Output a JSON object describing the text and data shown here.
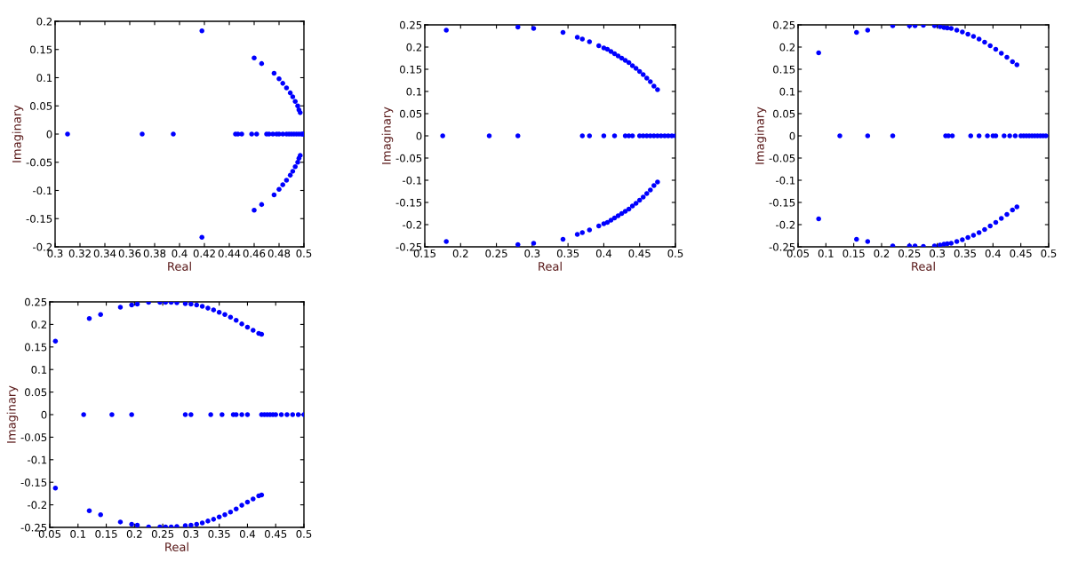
{
  "chart_data": [
    {
      "type": "scatter",
      "xlabel": "Real",
      "ylabel": "Imaginary",
      "marker": "circle",
      "grid": false,
      "xlim": [
        0.3,
        0.5
      ],
      "ylim": [
        -0.2,
        0.2
      ],
      "xticks": [
        0.3,
        0.32,
        0.34,
        0.36,
        0.38,
        0.4,
        0.42,
        0.44,
        0.46,
        0.48,
        0.5
      ],
      "yticks": [
        -0.2,
        -0.15,
        -0.1,
        -0.05,
        0,
        0.05,
        0.1,
        0.15,
        0.2
      ],
      "series": [
        {
          "color": "#0000ff",
          "x": [
            0.418,
            0.46,
            0.466,
            0.476,
            0.48,
            0.483,
            0.486,
            0.489,
            0.491,
            0.493,
            0.495,
            0.496,
            0.497,
            0.31,
            0.37,
            0.395,
            0.445,
            0.447,
            0.45,
            0.458,
            0.462,
            0.47,
            0.472,
            0.475,
            0.478,
            0.48,
            0.483,
            0.486,
            0.488,
            0.49,
            0.492,
            0.494,
            0.496,
            0.498,
            0.499,
            0.5,
            0.418,
            0.46,
            0.466,
            0.476,
            0.48,
            0.483,
            0.486,
            0.489,
            0.491,
            0.493,
            0.495,
            0.496,
            0.497
          ],
          "values": [
            0.183,
            0.135,
            0.125,
            0.108,
            0.098,
            0.09,
            0.082,
            0.073,
            0.066,
            0.058,
            0.05,
            0.043,
            0.038,
            0,
            0,
            0,
            0,
            0,
            0,
            0,
            0,
            0,
            0,
            0,
            0,
            0,
            0,
            0,
            0,
            0,
            0,
            0,
            0,
            0,
            0,
            0,
            -0.183,
            -0.135,
            -0.125,
            -0.108,
            -0.098,
            -0.09,
            -0.082,
            -0.073,
            -0.066,
            -0.058,
            -0.05,
            -0.043,
            -0.038
          ]
        }
      ]
    },
    {
      "type": "scatter",
      "xlabel": "Real",
      "ylabel": "Imaginary",
      "marker": "circle",
      "grid": false,
      "xlim": [
        0.15,
        0.5
      ],
      "ylim": [
        -0.25,
        0.25
      ],
      "xticks": [
        0.15,
        0.2,
        0.25,
        0.3,
        0.35,
        0.4,
        0.45,
        0.5
      ],
      "yticks": [
        -0.25,
        -0.2,
        -0.15,
        -0.1,
        -0.05,
        0,
        0.05,
        0.1,
        0.15,
        0.2,
        0.25
      ],
      "series": [
        {
          "color": "#0000ff",
          "x": [
            0.18,
            0.28,
            0.302,
            0.343,
            0.363,
            0.37,
            0.38,
            0.393,
            0.4,
            0.405,
            0.41,
            0.415,
            0.42,
            0.425,
            0.43,
            0.435,
            0.44,
            0.445,
            0.45,
            0.455,
            0.46,
            0.465,
            0.47,
            0.475,
            0.175,
            0.24,
            0.28,
            0.37,
            0.38,
            0.4,
            0.415,
            0.43,
            0.435,
            0.44,
            0.45,
            0.455,
            0.46,
            0.465,
            0.47,
            0.475,
            0.48,
            0.485,
            0.49,
            0.495,
            0.5,
            0.18,
            0.28,
            0.302,
            0.343,
            0.363,
            0.37,
            0.38,
            0.393,
            0.4,
            0.405,
            0.41,
            0.415,
            0.42,
            0.425,
            0.43,
            0.435,
            0.44,
            0.445,
            0.45,
            0.455,
            0.46,
            0.465,
            0.47,
            0.475
          ],
          "values": [
            0.238,
            0.245,
            0.242,
            0.233,
            0.222,
            0.218,
            0.212,
            0.203,
            0.198,
            0.195,
            0.19,
            0.185,
            0.18,
            0.175,
            0.17,
            0.165,
            0.158,
            0.152,
            0.145,
            0.138,
            0.13,
            0.122,
            0.112,
            0.104,
            0,
            0,
            0,
            0,
            0,
            0,
            0,
            0,
            0,
            0,
            0,
            0,
            0,
            0,
            0,
            0,
            0,
            0,
            0,
            0,
            0,
            -0.238,
            -0.245,
            -0.242,
            -0.233,
            -0.222,
            -0.218,
            -0.212,
            -0.203,
            -0.198,
            -0.195,
            -0.19,
            -0.185,
            -0.18,
            -0.175,
            -0.17,
            -0.165,
            -0.158,
            -0.152,
            -0.145,
            -0.138,
            -0.13,
            -0.122,
            -0.112,
            -0.104
          ]
        }
      ]
    },
    {
      "type": "scatter",
      "xlabel": "Real",
      "ylabel": "Imaginary",
      "marker": "circle",
      "grid": false,
      "xlim": [
        0.05,
        0.5
      ],
      "ylim": [
        -0.25,
        0.25
      ],
      "xticks": [
        0.05,
        0.1,
        0.15,
        0.2,
        0.25,
        0.3,
        0.35,
        0.4,
        0.45,
        0.5
      ],
      "yticks": [
        -0.25,
        -0.2,
        -0.15,
        -0.1,
        -0.05,
        0,
        0.05,
        0.1,
        0.15,
        0.2,
        0.25
      ],
      "series": [
        {
          "color": "#0000ff",
          "x": [
            0.087,
            0.155,
            0.175,
            0.22,
            0.25,
            0.26,
            0.275,
            0.295,
            0.305,
            0.312,
            0.318,
            0.325,
            0.335,
            0.345,
            0.355,
            0.365,
            0.375,
            0.385,
            0.395,
            0.405,
            0.415,
            0.425,
            0.435,
            0.443,
            0.125,
            0.175,
            0.22,
            0.315,
            0.32,
            0.327,
            0.36,
            0.375,
            0.39,
            0.4,
            0.405,
            0.42,
            0.43,
            0.44,
            0.45,
            0.455,
            0.46,
            0.465,
            0.47,
            0.475,
            0.48,
            0.485,
            0.49,
            0.495,
            0.087,
            0.155,
            0.175,
            0.22,
            0.25,
            0.26,
            0.275,
            0.295,
            0.305,
            0.312,
            0.318,
            0.325,
            0.335,
            0.345,
            0.355,
            0.365,
            0.375,
            0.385,
            0.395,
            0.405,
            0.415,
            0.425,
            0.435,
            0.443
          ],
          "values": [
            0.187,
            0.233,
            0.238,
            0.248,
            0.248,
            0.248,
            0.249,
            0.248,
            0.246,
            0.244,
            0.243,
            0.242,
            0.238,
            0.234,
            0.229,
            0.224,
            0.218,
            0.211,
            0.203,
            0.195,
            0.186,
            0.177,
            0.167,
            0.16,
            0,
            0,
            0,
            0,
            0,
            0,
            0,
            0,
            0,
            0,
            0,
            0,
            0,
            0,
            0,
            0,
            0,
            0,
            0,
            0,
            0,
            0,
            0,
            0,
            -0.187,
            -0.233,
            -0.238,
            -0.248,
            -0.248,
            -0.248,
            -0.249,
            -0.248,
            -0.246,
            -0.244,
            -0.243,
            -0.242,
            -0.238,
            -0.234,
            -0.229,
            -0.224,
            -0.218,
            -0.211,
            -0.203,
            -0.195,
            -0.186,
            -0.177,
            -0.167,
            -0.16
          ]
        }
      ]
    },
    {
      "type": "scatter",
      "xlabel": "Real",
      "ylabel": "Imaginary",
      "marker": "circle",
      "grid": false,
      "xlim": [
        0.05,
        0.5
      ],
      "ylim": [
        -0.25,
        0.25
      ],
      "xticks": [
        0.05,
        0.1,
        0.15,
        0.2,
        0.25,
        0.3,
        0.35,
        0.4,
        0.45,
        0.5
      ],
      "yticks": [
        -0.25,
        -0.2,
        -0.15,
        -0.1,
        -0.05,
        0,
        0.05,
        0.1,
        0.15,
        0.2,
        0.25
      ],
      "series": [
        {
          "color": "#0000ff",
          "x": [
            0.06,
            0.12,
            0.14,
            0.175,
            0.195,
            0.205,
            0.225,
            0.245,
            0.255,
            0.265,
            0.275,
            0.29,
            0.3,
            0.31,
            0.32,
            0.33,
            0.34,
            0.35,
            0.36,
            0.37,
            0.38,
            0.39,
            0.4,
            0.41,
            0.42,
            0.425,
            0.11,
            0.16,
            0.195,
            0.29,
            0.3,
            0.335,
            0.355,
            0.375,
            0.38,
            0.39,
            0.4,
            0.425,
            0.43,
            0.435,
            0.44,
            0.445,
            0.45,
            0.46,
            0.47,
            0.48,
            0.49,
            0.5,
            0.06,
            0.12,
            0.14,
            0.175,
            0.195,
            0.205,
            0.225,
            0.245,
            0.255,
            0.265,
            0.275,
            0.29,
            0.3,
            0.31,
            0.32,
            0.33,
            0.34,
            0.35,
            0.36,
            0.37,
            0.38,
            0.39,
            0.4,
            0.41,
            0.42,
            0.425
          ],
          "values": [
            0.163,
            0.213,
            0.222,
            0.238,
            0.243,
            0.245,
            0.249,
            0.249,
            0.249,
            0.249,
            0.248,
            0.246,
            0.245,
            0.243,
            0.24,
            0.236,
            0.232,
            0.227,
            0.222,
            0.216,
            0.209,
            0.201,
            0.194,
            0.187,
            0.18,
            0.178,
            0,
            0,
            0,
            0,
            0,
            0,
            0,
            0,
            0,
            0,
            0,
            0,
            0,
            0,
            0,
            0,
            0,
            0,
            0,
            0,
            0,
            0,
            -0.163,
            -0.213,
            -0.222,
            -0.238,
            -0.243,
            -0.245,
            -0.249,
            -0.249,
            -0.249,
            -0.249,
            -0.248,
            -0.246,
            -0.245,
            -0.243,
            -0.24,
            -0.236,
            -0.232,
            -0.227,
            -0.222,
            -0.216,
            -0.209,
            -0.201,
            -0.194,
            -0.187,
            -0.18,
            -0.178
          ]
        }
      ]
    }
  ]
}
